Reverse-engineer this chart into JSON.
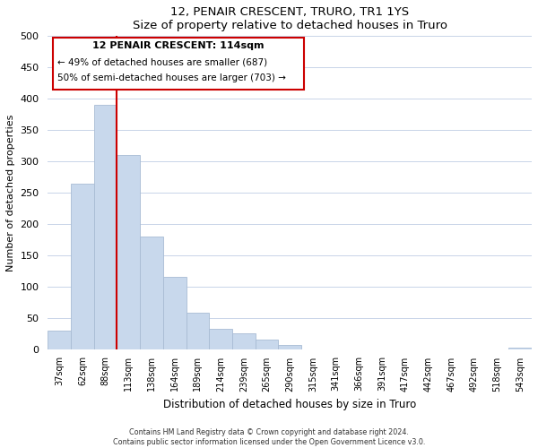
{
  "title": "12, PENAIR CRESCENT, TRURO, TR1 1YS",
  "subtitle": "Size of property relative to detached houses in Truro",
  "xlabel": "Distribution of detached houses by size in Truro",
  "ylabel": "Number of detached properties",
  "bar_labels": [
    "37sqm",
    "62sqm",
    "88sqm",
    "113sqm",
    "138sqm",
    "164sqm",
    "189sqm",
    "214sqm",
    "239sqm",
    "265sqm",
    "290sqm",
    "315sqm",
    "341sqm",
    "366sqm",
    "391sqm",
    "417sqm",
    "442sqm",
    "467sqm",
    "492sqm",
    "518sqm",
    "543sqm"
  ],
  "bar_heights": [
    30,
    265,
    390,
    310,
    180,
    115,
    58,
    32,
    25,
    15,
    7,
    0,
    0,
    0,
    0,
    0,
    0,
    0,
    0,
    0,
    2
  ],
  "bar_color": "#c8d8ec",
  "bar_edge_color": "#a8bcd4",
  "vline_color": "#cc0000",
  "ylim": [
    0,
    500
  ],
  "yticks": [
    0,
    50,
    100,
    150,
    200,
    250,
    300,
    350,
    400,
    450,
    500
  ],
  "annotation_title": "12 PENAIR CRESCENT: 114sqm",
  "annotation_line1": "← 49% of detached houses are smaller (687)",
  "annotation_line2": "50% of semi-detached houses are larger (703) →",
  "annotation_box_color": "#ffffff",
  "annotation_box_edge": "#cc0000",
  "footer_line1": "Contains HM Land Registry data © Crown copyright and database right 2024.",
  "footer_line2": "Contains public sector information licensed under the Open Government Licence v3.0."
}
